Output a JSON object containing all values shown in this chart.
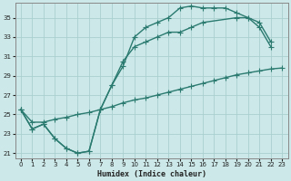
{
  "xlabel": "Humidex (Indice chaleur)",
  "xlim": [
    -0.5,
    23.5
  ],
  "ylim": [
    20.5,
    36.5
  ],
  "xticks": [
    0,
    1,
    2,
    3,
    4,
    5,
    6,
    7,
    8,
    9,
    10,
    11,
    12,
    13,
    14,
    15,
    16,
    17,
    18,
    19,
    20,
    21,
    22,
    23
  ],
  "yticks": [
    21,
    23,
    25,
    27,
    29,
    31,
    33,
    35
  ],
  "background_color": "#cce8e8",
  "grid_color": "#aacfcf",
  "line_color": "#2a7a70",
  "line1_y": [
    25.5,
    23.5,
    24.0,
    22.5,
    21.5,
    21.0,
    21.2,
    25.5,
    28.0,
    30.0,
    33.0,
    34.0,
    34.5,
    35.0,
    36.0,
    36.2,
    36.0,
    36.0,
    36.0,
    35.5,
    35.0,
    34.0,
    32.0,
    null
  ],
  "line2_y": [
    25.5,
    23.5,
    24.0,
    22.5,
    21.5,
    21.0,
    21.2,
    25.5,
    28.0,
    30.5,
    32.0,
    32.5,
    33.0,
    33.5,
    33.5,
    34.0,
    34.5,
    null,
    null,
    35.0,
    35.0,
    34.5,
    32.5,
    null
  ],
  "line3_y": [
    25.5,
    24.2,
    24.2,
    24.5,
    24.7,
    25.0,
    25.2,
    25.5,
    25.8,
    26.2,
    26.5,
    26.7,
    27.0,
    27.3,
    27.6,
    27.9,
    28.2,
    28.5,
    28.8,
    29.1,
    29.3,
    29.5,
    29.7,
    29.8
  ],
  "marker_size": 2.5,
  "linewidth": 1.0
}
